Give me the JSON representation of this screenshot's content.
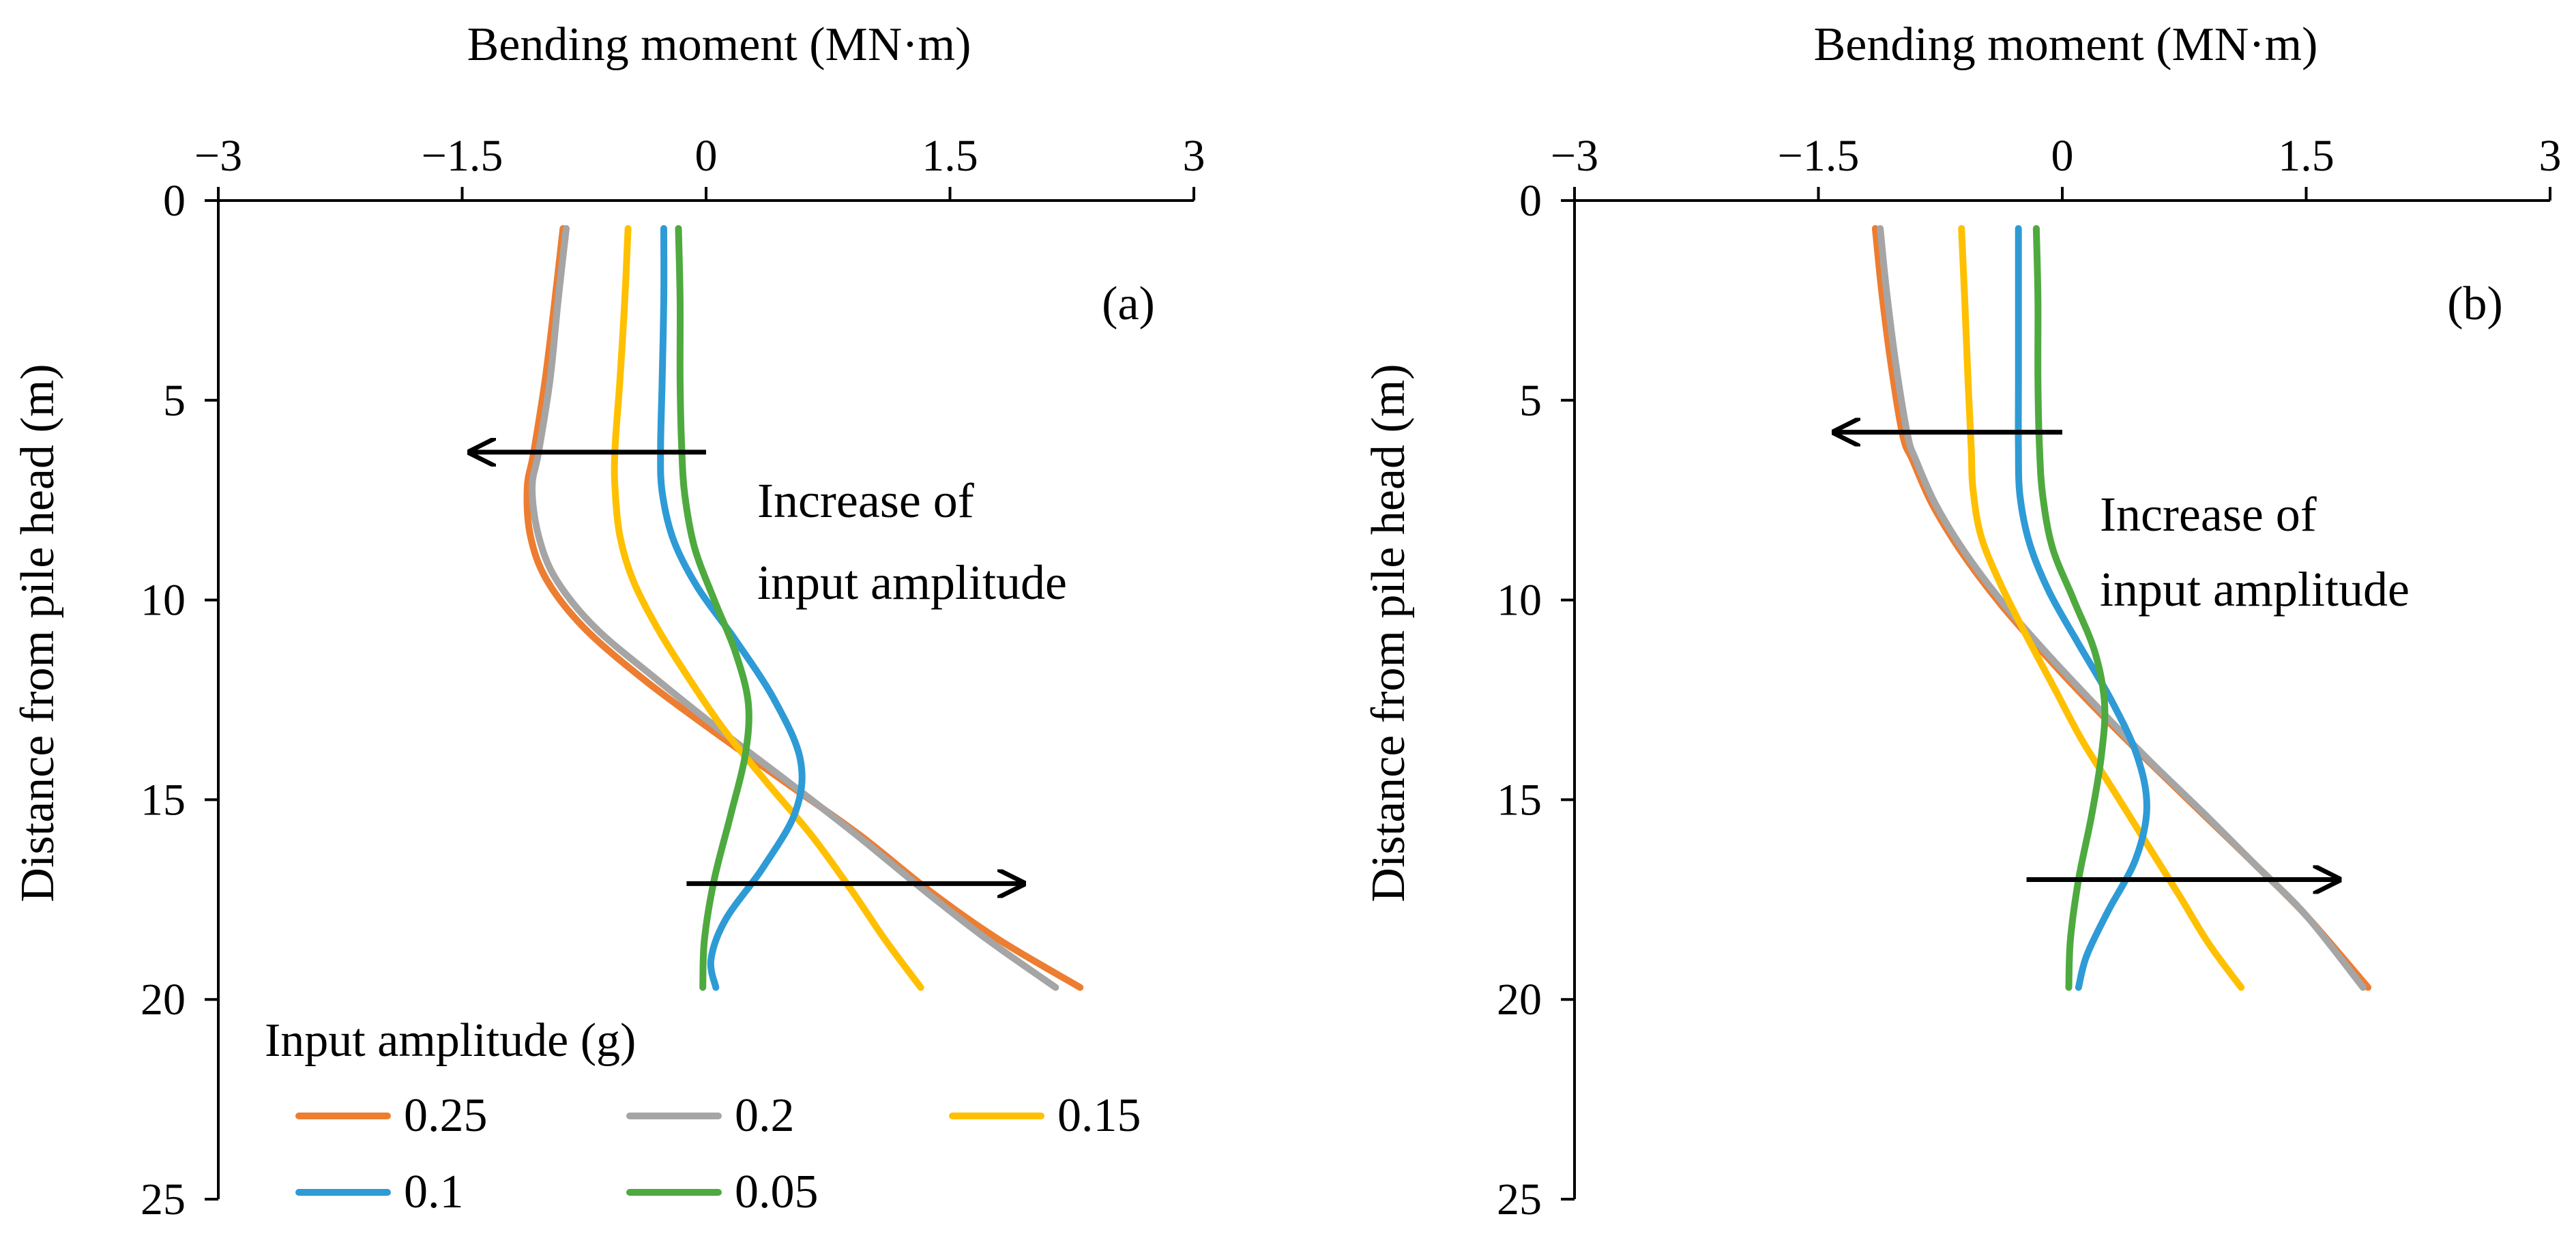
{
  "colors": {
    "s025": "#ED7D31",
    "s02": "#A5A5A5",
    "s015": "#FFC000",
    "s01": "#2E9BD6",
    "s005": "#4EAA3F",
    "axis": "#000000",
    "arrow": "#000000"
  },
  "legend": {
    "title": "Input amplitude (g)",
    "items": [
      {
        "label": "0.25",
        "color_key": "s025"
      },
      {
        "label": "0.2",
        "color_key": "s02"
      },
      {
        "label": "0.15",
        "color_key": "s015"
      },
      {
        "label": "0.1",
        "color_key": "s01"
      },
      {
        "label": "0.05",
        "color_key": "s005"
      }
    ]
  },
  "chart_data": [
    {
      "type": "line",
      "panel_label": "(a)",
      "title": "",
      "xlabel": "Bending moment (MN·m)",
      "ylabel": "Distance from pile head (m)",
      "xlim": [
        -3,
        3
      ],
      "ylim": [
        0,
        25
      ],
      "y_inverted": true,
      "x_ticks": [
        "−3",
        "−1.5",
        "0",
        "1.5",
        "3"
      ],
      "x_tick_values": [
        -3,
        -1.5,
        0,
        1.5,
        3
      ],
      "y_ticks": [
        "0",
        "5",
        "10",
        "15",
        "20",
        "25"
      ],
      "y_tick_values": [
        0,
        5,
        10,
        15,
        20,
        25
      ],
      "annotation": {
        "line1": "Increase of",
        "line2": "input amplitude"
      },
      "arrows": [
        {
          "from": [
            0.0,
            6.3
          ],
          "to": [
            -1.45,
            6.3
          ]
        },
        {
          "from": [
            -0.12,
            17.1
          ],
          "to": [
            1.95,
            17.1
          ]
        }
      ],
      "series": [
        {
          "name": "0.25",
          "color_key": "s025",
          "x": [
            -0.88,
            -0.93,
            -0.99,
            -1.06,
            -1.1,
            -1.08,
            -0.98,
            -0.75,
            -0.38,
            0.05,
            0.5,
            0.95,
            1.38,
            1.8,
            2.3
          ],
          "y": [
            0.7,
            2.5,
            4.5,
            6.3,
            7.2,
            8.4,
            9.5,
            10.7,
            12.0,
            13.3,
            14.6,
            15.9,
            17.3,
            18.5,
            19.7
          ]
        },
        {
          "name": "0.2",
          "color_key": "s02",
          "x": [
            -0.86,
            -0.91,
            -0.96,
            -1.03,
            -1.07,
            -1.03,
            -0.92,
            -0.68,
            -0.3,
            0.1,
            0.52,
            0.93,
            1.35,
            1.73,
            2.15
          ],
          "y": [
            0.7,
            2.5,
            4.5,
            6.3,
            7.2,
            8.4,
            9.5,
            10.7,
            12.0,
            13.3,
            14.6,
            15.9,
            17.3,
            18.5,
            19.7
          ]
        },
        {
          "name": "0.15",
          "color_key": "s015",
          "x": [
            -0.48,
            -0.5,
            -0.53,
            -0.56,
            -0.56,
            -0.53,
            -0.45,
            -0.3,
            -0.1,
            0.12,
            0.38,
            0.65,
            0.9,
            1.1,
            1.32
          ],
          "y": [
            0.7,
            2.5,
            4.5,
            6.2,
            7.2,
            8.4,
            9.5,
            10.7,
            12.0,
            13.3,
            14.6,
            15.9,
            17.3,
            18.5,
            19.7
          ]
        },
        {
          "name": "0.1",
          "color_key": "s01",
          "x": [
            -0.26,
            -0.26,
            -0.27,
            -0.28,
            -0.27,
            -0.2,
            -0.05,
            0.18,
            0.42,
            0.58,
            0.55,
            0.35,
            0.12,
            0.03,
            0.06
          ],
          "y": [
            0.7,
            2.5,
            4.5,
            6.2,
            7.3,
            8.5,
            9.7,
            11.0,
            12.5,
            14.0,
            15.3,
            16.7,
            18.0,
            19.0,
            19.7
          ]
        },
        {
          "name": "0.05",
          "color_key": "s005",
          "x": [
            -0.17,
            -0.16,
            -0.16,
            -0.15,
            -0.13,
            -0.07,
            0.05,
            0.18,
            0.26,
            0.24,
            0.15,
            0.05,
            -0.01,
            -0.02
          ],
          "y": [
            0.7,
            2.5,
            4.5,
            6.2,
            7.4,
            8.7,
            10.0,
            11.3,
            12.6,
            13.9,
            15.4,
            17.0,
            18.5,
            19.7
          ]
        }
      ]
    },
    {
      "type": "line",
      "panel_label": "(b)",
      "title": "",
      "xlabel": "Bending moment (MN·m)",
      "ylabel": "Distance from pile head (m)",
      "xlim": [
        -3,
        3
      ],
      "ylim": [
        0,
        25
      ],
      "y_inverted": true,
      "x_ticks": [
        "−3",
        "−1.5",
        "0",
        "1.5",
        "3"
      ],
      "x_tick_values": [
        -3,
        -1.5,
        0,
        1.5,
        3
      ],
      "y_ticks": [
        "0",
        "5",
        "10",
        "15",
        "20",
        "25"
      ],
      "y_tick_values": [
        0,
        5,
        10,
        15,
        20,
        25
      ],
      "annotation": {
        "line1": "Increase of",
        "line2": "input amplitude"
      },
      "arrows": [
        {
          "from": [
            0.0,
            5.8
          ],
          "to": [
            -1.4,
            5.8
          ]
        },
        {
          "from": [
            -0.22,
            17.0
          ],
          "to": [
            1.7,
            17.0
          ]
        }
      ],
      "series": [
        {
          "name": "0.25",
          "color_key": "s025",
          "x": [
            -1.15,
            -1.11,
            -1.05,
            -0.98,
            -0.92,
            -0.8,
            -0.62,
            -0.38,
            -0.1,
            0.2,
            0.52,
            0.85,
            1.18,
            1.5,
            1.88
          ],
          "y": [
            0.7,
            2.3,
            4.2,
            5.9,
            6.5,
            7.6,
            8.8,
            10.1,
            11.4,
            12.7,
            14.0,
            15.3,
            16.6,
            17.9,
            19.7
          ]
        },
        {
          "name": "0.2",
          "color_key": "s02",
          "x": [
            -1.12,
            -1.08,
            -1.02,
            -0.95,
            -0.9,
            -0.78,
            -0.6,
            -0.36,
            -0.08,
            0.22,
            0.53,
            0.86,
            1.18,
            1.5,
            1.85
          ],
          "y": [
            0.7,
            2.3,
            4.2,
            5.9,
            6.5,
            7.6,
            8.8,
            10.1,
            11.4,
            12.7,
            14.0,
            15.3,
            16.6,
            17.9,
            19.7
          ]
        },
        {
          "name": "0.15",
          "color_key": "s015",
          "x": [
            -0.62,
            -0.6,
            -0.58,
            -0.56,
            -0.55,
            -0.5,
            -0.38,
            -0.22,
            -0.05,
            0.12,
            0.32,
            0.52,
            0.72,
            0.9,
            1.1
          ],
          "y": [
            0.7,
            2.5,
            4.5,
            6.2,
            7.2,
            8.4,
            9.6,
            10.9,
            12.2,
            13.5,
            14.8,
            16.1,
            17.4,
            18.6,
            19.7
          ]
        },
        {
          "name": "0.1",
          "color_key": "s01",
          "x": [
            -0.27,
            -0.27,
            -0.27,
            -0.27,
            -0.26,
            -0.2,
            -0.08,
            0.1,
            0.3,
            0.46,
            0.52,
            0.45,
            0.28,
            0.15,
            0.1
          ],
          "y": [
            0.7,
            2.5,
            4.5,
            6.2,
            7.4,
            8.6,
            9.8,
            11.1,
            12.5,
            13.9,
            15.2,
            16.5,
            17.8,
            18.9,
            19.7
          ]
        },
        {
          "name": "0.05",
          "color_key": "s005",
          "x": [
            -0.16,
            -0.15,
            -0.15,
            -0.14,
            -0.12,
            -0.06,
            0.07,
            0.2,
            0.26,
            0.24,
            0.18,
            0.1,
            0.05,
            0.04
          ],
          "y": [
            0.7,
            2.5,
            4.5,
            6.2,
            7.4,
            8.7,
            10.0,
            11.3,
            12.6,
            13.9,
            15.4,
            17.0,
            18.5,
            19.7
          ]
        }
      ]
    }
  ]
}
